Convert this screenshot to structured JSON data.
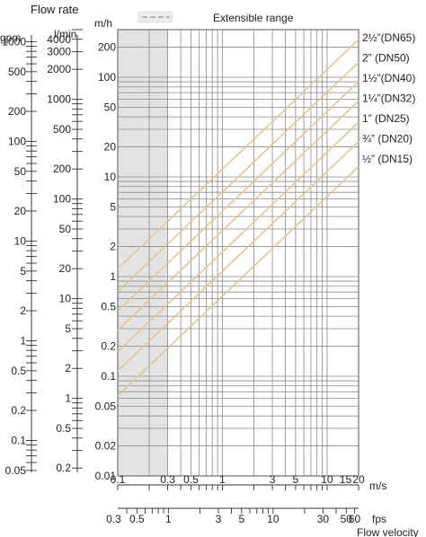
{
  "chart_data": {
    "type": "line",
    "title": "Flow rate",
    "legend_label": "Extensible range",
    "x_scale": "log",
    "y_scale": "log",
    "x_primary": {
      "unit": "m/s",
      "range": [
        0.1,
        20
      ],
      "tick_labels": [
        {
          "value": 0.1,
          "label": "0.1"
        },
        {
          "value": 0.3,
          "label": "0.3"
        },
        {
          "value": 0.5,
          "label": "0.5"
        },
        {
          "value": 1,
          "label": "1"
        },
        {
          "value": 3,
          "label": "3"
        },
        {
          "value": 5,
          "label": "5"
        },
        {
          "value": 10,
          "label": "10"
        },
        {
          "value": 15,
          "label": "15"
        },
        {
          "value": 20,
          "label": "20"
        }
      ]
    },
    "x_secondary": {
      "unit": "fps",
      "title": "Flow velocity",
      "tick_labels": [
        {
          "value": 0.3,
          "label": "0.3"
        },
        {
          "value": 0.5,
          "label": "0.5"
        },
        {
          "value": 1,
          "label": "1"
        },
        {
          "value": 3,
          "label": "3"
        },
        {
          "value": 5,
          "label": "5"
        },
        {
          "value": 10,
          "label": "10"
        },
        {
          "value": 30,
          "label": "30"
        },
        {
          "value": 50,
          "label": "50"
        },
        {
          "value": 60,
          "label": "60"
        }
      ]
    },
    "y_primary": {
      "unit": "m/h",
      "range": [
        0.01,
        300
      ],
      "tick_labels": [
        {
          "value": 200,
          "label": "200"
        },
        {
          "value": 100,
          "label": "100"
        },
        {
          "value": 50,
          "label": "50"
        },
        {
          "value": 20,
          "label": "20"
        },
        {
          "value": 10,
          "label": "10"
        },
        {
          "value": 5,
          "label": "5"
        },
        {
          "value": 2,
          "label": "2"
        },
        {
          "value": 1,
          "label": "1"
        },
        {
          "value": 0.5,
          "label": "0.5"
        },
        {
          "value": 0.2,
          "label": "0.2"
        },
        {
          "value": 0.1,
          "label": "0.1"
        },
        {
          "value": 0.05,
          "label": "0.05"
        },
        {
          "value": 0.02,
          "label": "0.02"
        },
        {
          "value": 0.01,
          "label": "0.01"
        }
      ]
    },
    "y_lmin": {
      "unit": "l/min",
      "tick_labels": [
        {
          "value": 4000,
          "label": "4000"
        },
        {
          "value": 3000,
          "label": "3000"
        },
        {
          "value": 2000,
          "label": "2000"
        },
        {
          "value": 1000,
          "label": "1000"
        },
        {
          "value": 500,
          "label": "500"
        },
        {
          "value": 200,
          "label": "200"
        },
        {
          "value": 100,
          "label": "100"
        },
        {
          "value": 50,
          "label": "50"
        },
        {
          "value": 20,
          "label": "20"
        },
        {
          "value": 10,
          "label": "10"
        },
        {
          "value": 5,
          "label": "5"
        },
        {
          "value": 2,
          "label": "2"
        },
        {
          "value": 1,
          "label": "1"
        },
        {
          "value": 0.5,
          "label": "0.5"
        },
        {
          "value": 0.2,
          "label": "0.2"
        }
      ]
    },
    "y_gpm": {
      "unit": "gpm",
      "tick_labels": [
        {
          "value": 1000,
          "label": "1000"
        },
        {
          "value": 500,
          "label": "500"
        },
        {
          "value": 200,
          "label": "200"
        },
        {
          "value": 100,
          "label": "100"
        },
        {
          "value": 50,
          "label": "50"
        },
        {
          "value": 20,
          "label": "20"
        },
        {
          "value": 10,
          "label": "10"
        },
        {
          "value": 5,
          "label": "5"
        },
        {
          "value": 2,
          "label": "2"
        },
        {
          "value": 1,
          "label": "1"
        },
        {
          "value": 0.5,
          "label": "0.5"
        },
        {
          "value": 0.2,
          "label": "0.2"
        },
        {
          "value": 0.1,
          "label": "0.1"
        },
        {
          "value": 0.05,
          "label": "0.05"
        }
      ]
    },
    "extensible_range": [
      0.1,
      0.3
    ],
    "series": [
      {
        "name": "2½”(DN65)",
        "diameter_mm": 65
      },
      {
        "name": "2”  (DN50)",
        "diameter_mm": 50
      },
      {
        "name": "1½”(DN40)",
        "diameter_mm": 40
      },
      {
        "name": "1¼”(DN32)",
        "diameter_mm": 32
      },
      {
        "name": "1”   (DN25)",
        "diameter_mm": 25
      },
      {
        "name": "¾”  (DN20)",
        "diameter_mm": 20
      },
      {
        "name": "½”  (DN15)",
        "diameter_mm": 15
      }
    ],
    "colors": {
      "series_line": "#e8c48a",
      "shade": "#e3e3e3",
      "grid": "#8a8a8a",
      "legend_swatch": "#b5b5b5"
    }
  }
}
